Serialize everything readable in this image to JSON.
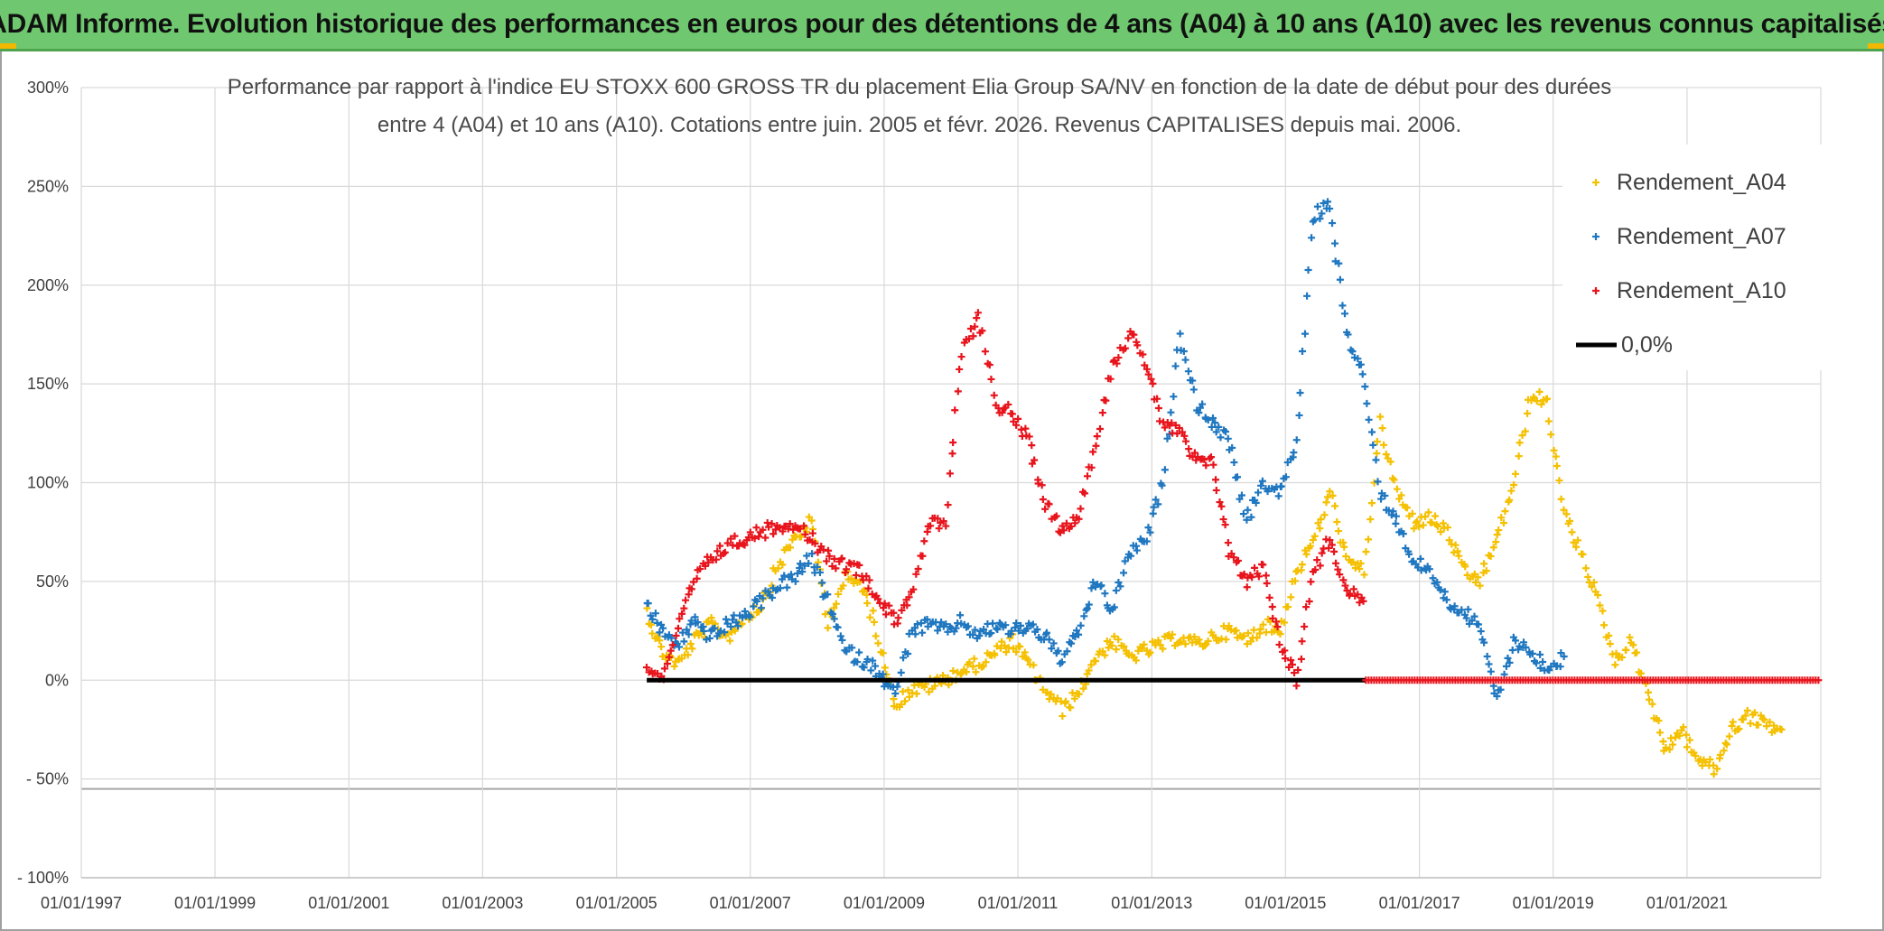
{
  "banner": {
    "title": "ADAM Informe. Evolution historique des performances en euros pour des détentions de 4 ans (A04) à 10 ans (A10) avec les revenus connus capitalisés"
  },
  "colors": {
    "banner_bg": "#6fc86f",
    "a04": "#f5c000",
    "a07": "#1f77c0",
    "a10": "#e8141c",
    "zero": "#000000",
    "grid": "#d9d9d9"
  },
  "chart_data": {
    "type": "scatter",
    "title_line1": "Performance par rapport à l'indice EU STOXX 600 GROSS TR  du placement Elia Group SA/NV en fonction de la date de début pour des durées",
    "title_line2": "entre 4 (A04) et 10 ans (A10). Cotations entre juin. 2005 et févr. 2026. Revenus CAPITALISES depuis mai. 2006.",
    "xlabel": "",
    "ylabel": "",
    "x_ticks": [
      "01/01/1997",
      "01/01/1999",
      "01/01/2001",
      "01/01/2003",
      "01/01/2005",
      "01/01/2007",
      "01/01/2009",
      "01/01/2011",
      "01/01/2013",
      "01/01/2015",
      "01/01/2017",
      "01/01/2019",
      "01/01/2021"
    ],
    "y_ticks": [
      "300%",
      "250%",
      "200%",
      "150%",
      "100%",
      "50%",
      "0%",
      "- 50%",
      "- 100%"
    ],
    "xlim": [
      "1997-01-01",
      "2023-01-01"
    ],
    "ylim": [
      -100,
      300
    ],
    "grid": true,
    "legend_position": "top-right",
    "series": [
      {
        "name": "Rendement_A04",
        "marker": "+",
        "color": "#f5c000",
        "points": [
          [
            "2005-06-15",
            35
          ],
          [
            "2005-09-01",
            15
          ],
          [
            "2005-12-01",
            8
          ],
          [
            "2006-03-01",
            20
          ],
          [
            "2006-06-01",
            28
          ],
          [
            "2006-09-01",
            22
          ],
          [
            "2006-12-01",
            32
          ],
          [
            "2007-03-01",
            38
          ],
          [
            "2007-06-01",
            58
          ],
          [
            "2007-09-01",
            72
          ],
          [
            "2007-12-01",
            80
          ],
          [
            "2008-03-01",
            30
          ],
          [
            "2008-06-01",
            52
          ],
          [
            "2008-09-01",
            48
          ],
          [
            "2008-12-01",
            22
          ],
          [
            "2009-03-01",
            -12
          ],
          [
            "2009-06-01",
            -5
          ],
          [
            "2009-09-01",
            -3
          ],
          [
            "2009-12-01",
            0
          ],
          [
            "2010-03-01",
            5
          ],
          [
            "2010-06-01",
            8
          ],
          [
            "2010-09-01",
            14
          ],
          [
            "2010-12-01",
            20
          ],
          [
            "2011-03-01",
            8
          ],
          [
            "2011-06-01",
            -5
          ],
          [
            "2011-09-01",
            -15
          ],
          [
            "2011-12-01",
            -6
          ],
          [
            "2012-03-01",
            12
          ],
          [
            "2012-06-01",
            20
          ],
          [
            "2012-09-01",
            12
          ],
          [
            "2012-12-01",
            15
          ],
          [
            "2013-03-01",
            18
          ],
          [
            "2013-06-01",
            22
          ],
          [
            "2013-09-01",
            18
          ],
          [
            "2013-12-01",
            22
          ],
          [
            "2014-03-01",
            25
          ],
          [
            "2014-06-01",
            20
          ],
          [
            "2014-09-01",
            28
          ],
          [
            "2014-12-01",
            25
          ],
          [
            "2015-03-01",
            55
          ],
          [
            "2015-06-01",
            70
          ],
          [
            "2015-09-01",
            95
          ],
          [
            "2015-12-01",
            60
          ],
          [
            "2016-03-01",
            55
          ],
          [
            "2016-06-01",
            130
          ],
          [
            "2016-09-01",
            95
          ],
          [
            "2016-12-01",
            80
          ],
          [
            "2017-03-01",
            82
          ],
          [
            "2017-06-01",
            75
          ],
          [
            "2017-09-01",
            55
          ],
          [
            "2017-12-01",
            50
          ],
          [
            "2018-03-01",
            72
          ],
          [
            "2018-06-01",
            100
          ],
          [
            "2018-09-01",
            145
          ],
          [
            "2018-12-01",
            140
          ],
          [
            "2019-03-01",
            85
          ],
          [
            "2019-06-01",
            65
          ],
          [
            "2019-09-01",
            40
          ],
          [
            "2019-12-01",
            10
          ],
          [
            "2020-03-01",
            20
          ],
          [
            "2020-06-01",
            -5
          ],
          [
            "2020-09-01",
            -35
          ],
          [
            "2020-12-01",
            -25
          ],
          [
            "2021-03-01",
            -40
          ],
          [
            "2021-06-01",
            -45
          ],
          [
            "2021-09-01",
            -25
          ],
          [
            "2021-12-01",
            -18
          ],
          [
            "2022-03-01",
            -22
          ],
          [
            "2022-06-01",
            -25
          ]
        ]
      },
      {
        "name": "Rendement_A07",
        "marker": "+",
        "color": "#1f77c0",
        "points": [
          [
            "2005-06-15",
            38
          ],
          [
            "2005-09-01",
            25
          ],
          [
            "2005-12-01",
            18
          ],
          [
            "2006-03-01",
            30
          ],
          [
            "2006-06-01",
            22
          ],
          [
            "2006-09-01",
            28
          ],
          [
            "2006-12-01",
            32
          ],
          [
            "2007-03-01",
            40
          ],
          [
            "2007-06-01",
            48
          ],
          [
            "2007-09-01",
            52
          ],
          [
            "2007-12-01",
            62
          ],
          [
            "2008-03-01",
            40
          ],
          [
            "2008-06-01",
            15
          ],
          [
            "2008-09-01",
            10
          ],
          [
            "2008-12-01",
            5
          ],
          [
            "2009-03-01",
            -8
          ],
          [
            "2009-06-01",
            25
          ],
          [
            "2009-09-01",
            28
          ],
          [
            "2009-12-01",
            25
          ],
          [
            "2010-03-01",
            30
          ],
          [
            "2010-06-01",
            22
          ],
          [
            "2010-09-01",
            28
          ],
          [
            "2010-12-01",
            25
          ],
          [
            "2011-03-01",
            28
          ],
          [
            "2011-06-01",
            22
          ],
          [
            "2011-09-01",
            10
          ],
          [
            "2011-12-01",
            25
          ],
          [
            "2012-03-01",
            50
          ],
          [
            "2012-06-01",
            35
          ],
          [
            "2012-09-01",
            65
          ],
          [
            "2012-12-01",
            70
          ],
          [
            "2013-03-01",
            100
          ],
          [
            "2013-06-01",
            175
          ],
          [
            "2013-09-01",
            140
          ],
          [
            "2013-12-01",
            130
          ],
          [
            "2014-03-01",
            120
          ],
          [
            "2014-06-01",
            80
          ],
          [
            "2014-09-01",
            100
          ],
          [
            "2014-12-01",
            95
          ],
          [
            "2015-03-01",
            120
          ],
          [
            "2015-06-01",
            235
          ],
          [
            "2015-09-01",
            240
          ],
          [
            "2015-12-01",
            175
          ],
          [
            "2016-03-01",
            155
          ],
          [
            "2016-06-01",
            95
          ],
          [
            "2016-09-01",
            80
          ],
          [
            "2016-12-01",
            60
          ],
          [
            "2017-03-01",
            55
          ],
          [
            "2017-06-01",
            40
          ],
          [
            "2017-09-01",
            35
          ],
          [
            "2017-12-01",
            25
          ],
          [
            "2018-03-01",
            -10
          ],
          [
            "2018-06-01",
            20
          ],
          [
            "2018-09-01",
            15
          ],
          [
            "2018-12-01",
            5
          ],
          [
            "2019-03-01",
            12
          ]
        ]
      },
      {
        "name": "Rendement_A10",
        "marker": "+",
        "color": "#e8141c",
        "points": [
          [
            "2005-06-15",
            8
          ],
          [
            "2005-09-01",
            0
          ],
          [
            "2005-12-01",
            25
          ],
          [
            "2006-03-01",
            50
          ],
          [
            "2006-06-01",
            62
          ],
          [
            "2006-09-01",
            68
          ],
          [
            "2006-12-01",
            72
          ],
          [
            "2007-03-01",
            75
          ],
          [
            "2007-06-01",
            78
          ],
          [
            "2007-09-01",
            80
          ],
          [
            "2007-12-01",
            72
          ],
          [
            "2008-03-01",
            62
          ],
          [
            "2008-06-01",
            58
          ],
          [
            "2008-09-01",
            55
          ],
          [
            "2008-12-01",
            42
          ],
          [
            "2009-03-01",
            30
          ],
          [
            "2009-06-01",
            45
          ],
          [
            "2009-09-01",
            78
          ],
          [
            "2009-12-01",
            80
          ],
          [
            "2010-03-01",
            165
          ],
          [
            "2010-06-01",
            185
          ],
          [
            "2010-09-01",
            140
          ],
          [
            "2010-12-01",
            135
          ],
          [
            "2011-03-01",
            120
          ],
          [
            "2011-06-01",
            90
          ],
          [
            "2011-09-01",
            75
          ],
          [
            "2011-12-01",
            85
          ],
          [
            "2012-03-01",
            120
          ],
          [
            "2012-06-01",
            160
          ],
          [
            "2012-09-01",
            175
          ],
          [
            "2012-12-01",
            160
          ],
          [
            "2013-03-01",
            130
          ],
          [
            "2013-06-01",
            125
          ],
          [
            "2013-09-01",
            110
          ],
          [
            "2013-12-01",
            110
          ],
          [
            "2014-03-01",
            65
          ],
          [
            "2014-06-01",
            50
          ],
          [
            "2014-09-01",
            58
          ],
          [
            "2014-12-01",
            20
          ],
          [
            "2015-03-01",
            0
          ],
          [
            "2015-06-01",
            55
          ],
          [
            "2015-09-01",
            72
          ],
          [
            "2015-12-01",
            45
          ],
          [
            "2016-03-01",
            40
          ]
        ]
      },
      {
        "name": "0,0%",
        "marker": "line",
        "color": "#000000",
        "points": [
          [
            "2005-06-15",
            0
          ],
          [
            "2016-03-15",
            0
          ]
        ]
      },
      {
        "name": "",
        "marker": "+",
        "color": "#e8141c",
        "points": [
          [
            "2016-03-15",
            0
          ],
          [
            "2022-12-31",
            0
          ]
        ]
      }
    ]
  }
}
